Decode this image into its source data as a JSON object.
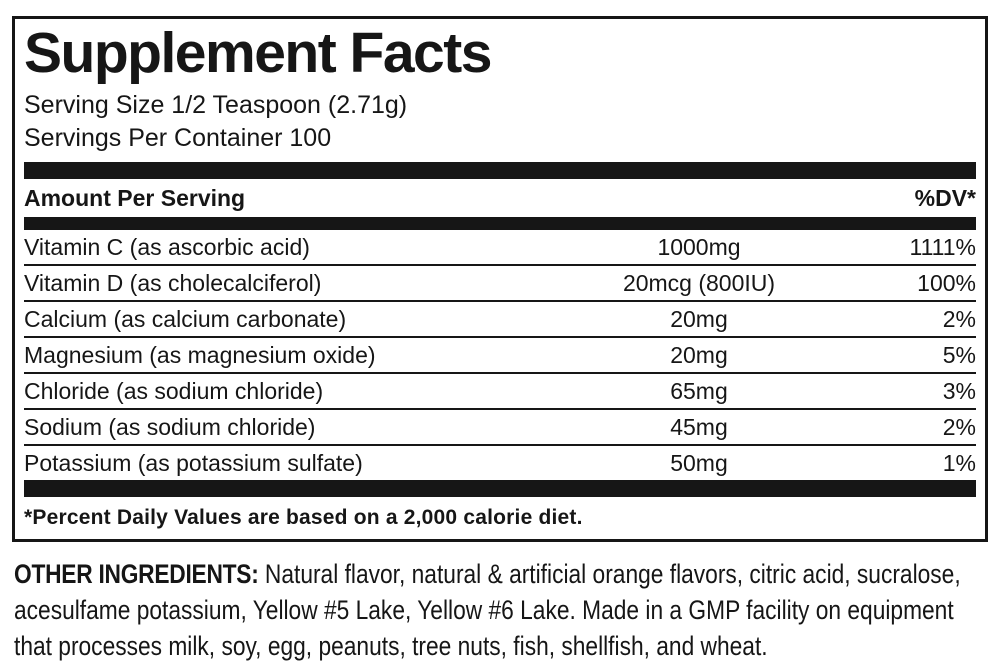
{
  "label": {
    "title": "Supplement Facts",
    "serving_size": "Serving Size 1/2 Teaspoon (2.71g)",
    "servings_per_container": "Servings Per Container 100",
    "header": {
      "amount_per_serving": "Amount Per Serving",
      "dv": "%DV*"
    },
    "nutrients": [
      {
        "name": "Vitamin C (as ascorbic acid)",
        "amount": "1000mg",
        "dv": "1111%"
      },
      {
        "name": "Vitamin D (as cholecalciferol)",
        "amount": "20mcg (800IU)",
        "dv": "100%"
      },
      {
        "name": "Calcium (as calcium carbonate)",
        "amount": "20mg",
        "dv": "2%"
      },
      {
        "name": "Magnesium (as magnesium oxide)",
        "amount": "20mg",
        "dv": "5%"
      },
      {
        "name": "Chloride (as sodium chloride)",
        "amount": "65mg",
        "dv": "3%"
      },
      {
        "name": "Sodium (as sodium chloride)",
        "amount": "45mg",
        "dv": "2%"
      },
      {
        "name": "Potassium (as potassium sulfate)",
        "amount": "50mg",
        "dv": "1%"
      }
    ],
    "footnote": "*Percent Daily Values are based on a 2,000 calorie diet."
  },
  "other_ingredients": {
    "label": "OTHER INGREDIENTS:",
    "text": " Natural flavor, natural & artificial orange flavors, citric acid, sucralose, acesulfame potassium, Yellow #5 Lake, Yellow #6 Lake. Made in a GMP facility on equipment that processes milk, soy, egg, peanuts, tree nuts, fish, shellfish, and wheat."
  },
  "colors": {
    "ink": "#161616",
    "background": "#ffffff"
  }
}
